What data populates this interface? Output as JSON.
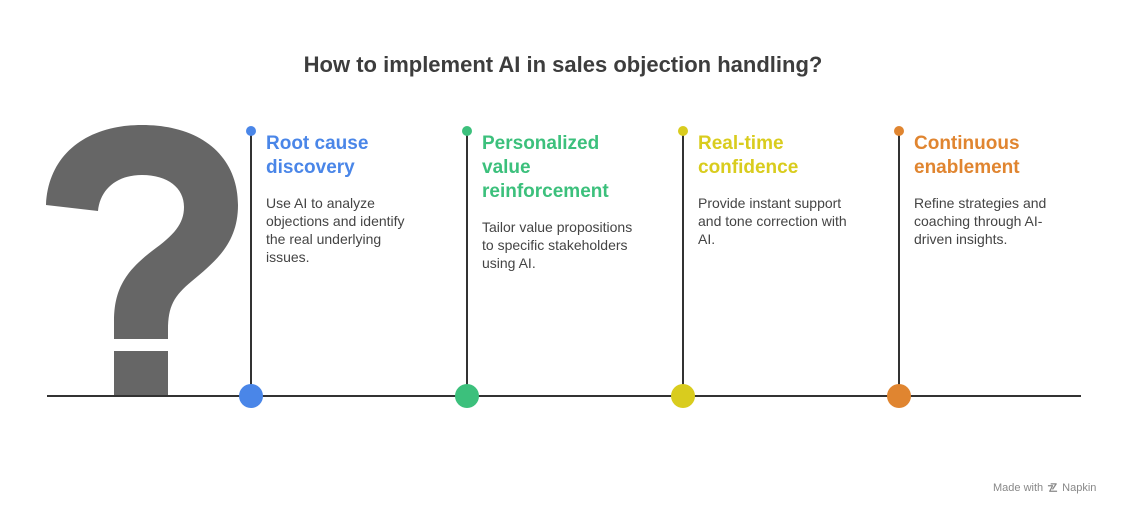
{
  "title": "How to implement AI in sales objection handling?",
  "steps": [
    {
      "title": "Root cause discovery",
      "title_lines": [
        "Root cause",
        "discovery"
      ],
      "description_lines": [
        "Use AI to analyze",
        "objections and identify",
        "the real underlying",
        "issues."
      ],
      "color": "#4A86E8"
    },
    {
      "title": "Personalized value reinforcement",
      "title_lines": [
        "Personalized",
        "value",
        "reinforcement"
      ],
      "description_lines": [
        "Tailor value propositions",
        "to specific stakeholders",
        "using AI."
      ],
      "color": "#3CC07C"
    },
    {
      "title": "Real-time confidence",
      "title_lines": [
        "Real-time",
        "confidence"
      ],
      "description_lines": [
        "Provide instant support",
        "and tone correction with",
        "AI."
      ],
      "color": "#D9CC1E"
    },
    {
      "title": "Continuous enablement",
      "title_lines": [
        "Continuous",
        "enablement"
      ],
      "description_lines": [
        "Refine strategies and",
        "coaching through AI-",
        "driven insights."
      ],
      "color": "#E08530"
    }
  ],
  "footer": {
    "prefix": "Made with",
    "brand": "Napkin",
    "icon": "napkin-logo-icon"
  },
  "decoration": {
    "icon": "question-mark-icon",
    "color": "#666666"
  }
}
